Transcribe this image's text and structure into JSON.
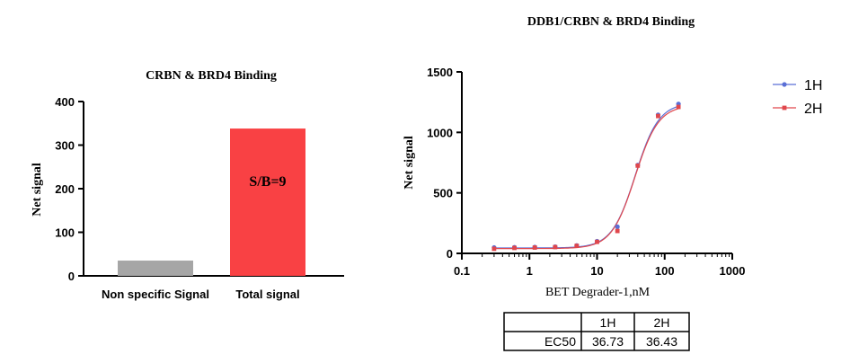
{
  "chart_data": [
    {
      "type": "bar",
      "title": "CRBN & BRD4 Binding",
      "ylabel": "Net signal",
      "xlabel": "",
      "ylim": [
        0,
        400
      ],
      "yticks": [
        0,
        100,
        200,
        300,
        400
      ],
      "categories": [
        "Non specific Signal",
        "Total signal"
      ],
      "values": [
        35,
        338
      ],
      "colors": [
        "#a6a6a6",
        "#f94144"
      ],
      "annotations": [
        {
          "text": "S/B=9",
          "category": "Total signal"
        }
      ],
      "grid": false
    },
    {
      "type": "line",
      "title": "DDB1/CRBN & BRD4 Binding",
      "xlabel": "BET Degrader-1,nM",
      "ylabel": "Net signal",
      "xscale": "log",
      "xlim": [
        0.1,
        1000
      ],
      "xticks": [
        0.1,
        1,
        10,
        100,
        1000
      ],
      "ylim": [
        0,
        1500
      ],
      "yticks": [
        0,
        500,
        1000,
        1500
      ],
      "legend_position": "right",
      "grid": false,
      "x": [
        0.3,
        0.6,
        1.2,
        2.4,
        5,
        10,
        20,
        40,
        80,
        160
      ],
      "series": [
        {
          "name": "1H",
          "color": "#5a6fd6",
          "marker": "circle",
          "values": [
            48,
            50,
            52,
            55,
            65,
            100,
            220,
            730,
            1145,
            1235
          ],
          "fit": {
            "bottom": 45,
            "top": 1245,
            "ec50": 36.73,
            "hill": 2.5
          }
        },
        {
          "name": "2H",
          "color": "#e0474c",
          "marker": "square",
          "values": [
            38,
            45,
            48,
            52,
            62,
            95,
            185,
            725,
            1135,
            1210
          ],
          "fit": {
            "bottom": 40,
            "top": 1225,
            "ec50": 36.43,
            "hill": 2.5
          }
        }
      ],
      "table": {
        "header": [
          "",
          "1H",
          "2H"
        ],
        "rows": [
          [
            "EC50",
            "36.73",
            "36.43"
          ]
        ]
      }
    }
  ]
}
